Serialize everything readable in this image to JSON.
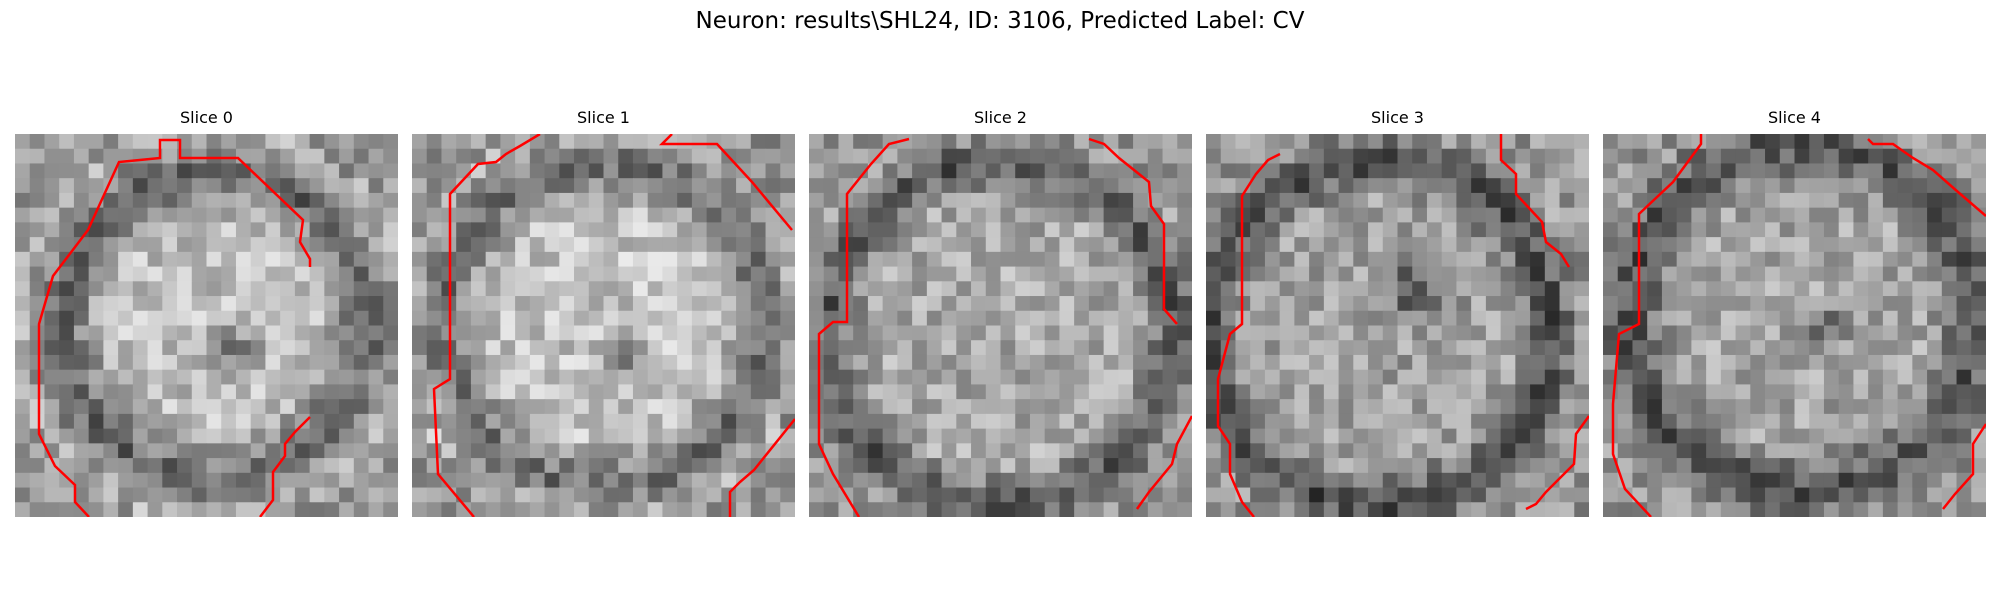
{
  "figure": {
    "title": "Neuron: results\\SHL24, ID: 3106, Predicted Label: CV"
  },
  "panels": [
    {
      "title": "Slice 0"
    },
    {
      "title": "Slice 1"
    },
    {
      "title": "Slice 2"
    },
    {
      "title": "Slice 3"
    },
    {
      "title": "Slice 4"
    }
  ],
  "colors": {
    "contour": "#ff0000",
    "background": "#ffffff"
  }
}
